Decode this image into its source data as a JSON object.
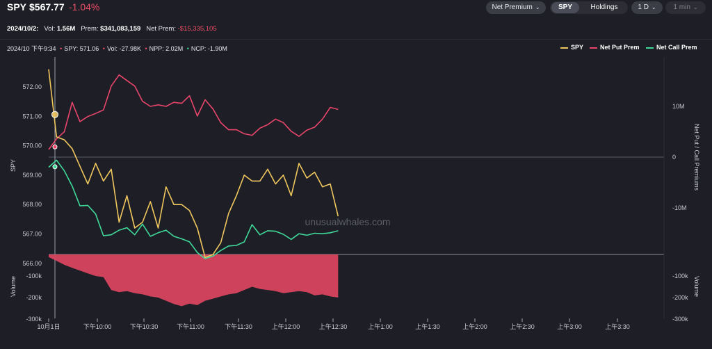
{
  "header": {
    "ticker": "SPY",
    "price": "$567.77",
    "change": "-1.04%",
    "controls": {
      "mode": "Net Premium",
      "seg_active": "SPY",
      "seg_inactive": "Holdings",
      "range": "1 D",
      "interval": "1 min"
    }
  },
  "summary": {
    "date": "2024/10/2:",
    "vol_label": "Vol:",
    "vol": "1.56M",
    "prem_label": "Prem:",
    "prem": "$341,083,159",
    "netprem_label": "Net Prem:",
    "netprem": "-$15,335,105"
  },
  "crosshair": {
    "time": "2024/10 下午9:34",
    "spy": "SPY: 571.06",
    "vol": "Vol: -27.98K",
    "npp": "NPP: 2.02M",
    "ncp": "NCP: -1.90M"
  },
  "colors": {
    "spy": "#f0c75e",
    "put": "#e8456b",
    "call": "#3fd99a",
    "volume": "#d9455f"
  },
  "watermark": "unusualwhales.com",
  "chart_data": {
    "type": "line",
    "legend": [
      "SPY",
      "Net Put Prem",
      "Net Call Prem"
    ],
    "legend_position": "top-right",
    "x_ticks": [
      "10月1日",
      "下午10:00",
      "下午10:30",
      "下午11:00",
      "下午11:30",
      "上午12:00",
      "上午12:30",
      "上午1:00",
      "上午1:30",
      "上午2:00",
      "上午2:30",
      "上午3:00",
      "上午3:30"
    ],
    "left_axis": {
      "label": "SPY",
      "ticks": [
        "572.00",
        "571.00",
        "570.00",
        "569.00",
        "568.00",
        "567.00",
        "566.00"
      ],
      "range": [
        566,
        572.5
      ]
    },
    "right_axis": {
      "label": "Net Put / Call Premiums",
      "ticks": [
        "10M",
        "0",
        "-10M"
      ]
    },
    "volume_axis": {
      "left_label": "Volume",
      "right_label": "Volume",
      "ticks": [
        "-100k",
        "-200k",
        "-300k"
      ]
    },
    "x_minutes": [
      0,
      5,
      10,
      15,
      20,
      25,
      30,
      35,
      40,
      45,
      50,
      55,
      60,
      65,
      70,
      75,
      80,
      85,
      90,
      95,
      100,
      105,
      110,
      115,
      120,
      125,
      130,
      135,
      140,
      145,
      150,
      155,
      160,
      165,
      170,
      175,
      180,
      185
    ],
    "series": [
      {
        "name": "SPY",
        "axis": "left",
        "values": [
          572.6,
          570.3,
          570.2,
          569.9,
          569.3,
          568.7,
          569.4,
          568.8,
          569.2,
          567.4,
          568.3,
          567.2,
          567.4,
          568.1,
          567.2,
          568.6,
          568.0,
          568.0,
          567.8,
          567.2,
          566.2,
          566.3,
          566.7,
          567.7,
          568.3,
          569.0,
          568.8,
          568.8,
          569.2,
          568.7,
          569.0,
          568.3,
          569.4,
          568.9,
          569.1,
          568.6,
          568.7,
          567.6
        ]
      },
      {
        "name": "Net Put Prem",
        "axis": "right",
        "values": [
          1.5,
          3.6,
          5.0,
          10.8,
          7.0,
          8.0,
          8.6,
          9.3,
          14.0,
          16.2,
          15.1,
          14.0,
          11.0,
          10.0,
          10.3,
          10.0,
          10.8,
          10.6,
          12.1,
          8.1,
          11.3,
          9.5,
          6.8,
          5.4,
          5.4,
          4.6,
          4.3,
          5.7,
          6.4,
          7.5,
          6.8,
          5.1,
          4.1,
          5.3,
          5.9,
          7.5,
          9.8,
          9.4
        ]
      },
      {
        "name": "Net Call Prem",
        "axis": "right",
        "values": [
          -2.0,
          -0.6,
          -2.7,
          -5.7,
          -9.6,
          -9.5,
          -11.2,
          -15.5,
          -15.3,
          -14.4,
          -13.9,
          -15.3,
          -13.2,
          -15.6,
          -14.9,
          -14.4,
          -15.6,
          -16.1,
          -16.7,
          -18.8,
          -20.0,
          -19.5,
          -18.4,
          -17.5,
          -17.4,
          -16.7,
          -13.3,
          -15.3,
          -14.5,
          -14.6,
          -15.2,
          -16.2,
          -15.1,
          -15.4,
          -15.0,
          -15.1,
          -14.9,
          -14.5
        ]
      },
      {
        "name": "Volume",
        "axis": "volume",
        "values": [
          -12,
          -30,
          -48,
          -62,
          -75,
          -88,
          -100,
          -105,
          -165,
          -175,
          -170,
          -180,
          -185,
          -195,
          -200,
          -215,
          -230,
          -240,
          -228,
          -235,
          -215,
          -205,
          -195,
          -185,
          -180,
          -165,
          -150,
          -160,
          -165,
          -170,
          -180,
          -175,
          -170,
          -175,
          -190,
          -185,
          -195,
          -200
        ]
      }
    ]
  }
}
